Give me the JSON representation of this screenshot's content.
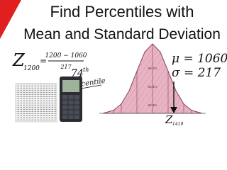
{
  "title": [
    "Find Percentiles with",
    "Mean and Standard Deviation"
  ],
  "formula": {
    "z": "Z",
    "subscript": "1200",
    "equals": "=",
    "numerator": "1200 − 1060",
    "denominator": "217"
  },
  "percentile": {
    "rank": "74",
    "suffix": "th",
    "word": "percentile"
  },
  "parameters": {
    "mean": "μ = 1060",
    "sd": "σ = 217"
  },
  "curve": {
    "labels": [
      "99.7%",
      "95.4%",
      "68.3%"
    ],
    "z_label": "Z",
    "z_subscript": "1419"
  }
}
